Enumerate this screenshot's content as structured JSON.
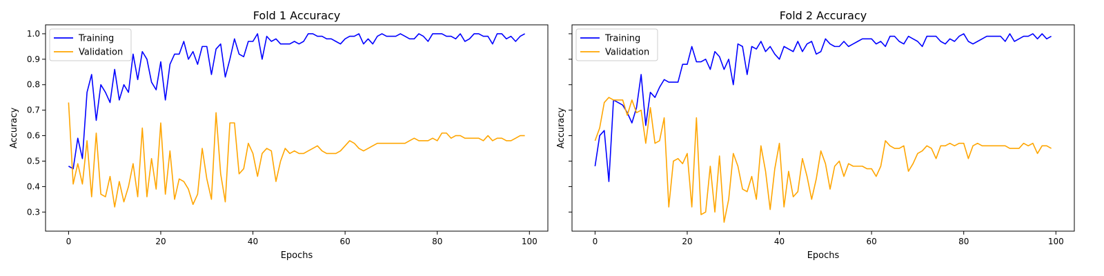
{
  "chart_data": [
    {
      "type": "line",
      "title": "Fold 1 Accuracy",
      "xlabel": "Epochs",
      "ylabel": "Accuracy",
      "xlim": [
        -5,
        104
      ],
      "ylim": [
        0.225,
        1.035
      ],
      "xticks": [
        0,
        20,
        40,
        60,
        80,
        100
      ],
      "yticks": [
        0.3,
        0.4,
        0.5,
        0.6,
        0.7,
        0.8,
        0.9,
        1.0
      ],
      "ytick_labels": [
        "0.3",
        "0.4",
        "0.5",
        "0.6",
        "0.7",
        "0.8",
        "0.9",
        "1.0"
      ],
      "grid": false,
      "legend": "top-left",
      "series": [
        {
          "name": "Training",
          "color": "#0000ff",
          "values": [
            0.48,
            0.47,
            0.59,
            0.51,
            0.77,
            0.84,
            0.66,
            0.8,
            0.77,
            0.73,
            0.86,
            0.74,
            0.8,
            0.77,
            0.92,
            0.82,
            0.93,
            0.9,
            0.81,
            0.78,
            0.89,
            0.74,
            0.88,
            0.92,
            0.92,
            0.97,
            0.9,
            0.93,
            0.88,
            0.95,
            0.95,
            0.84,
            0.94,
            0.96,
            0.83,
            0.9,
            0.98,
            0.92,
            0.91,
            0.97,
            0.97,
            1.0,
            0.9,
            0.99,
            0.97,
            0.98,
            0.96,
            0.96,
            0.96,
            0.97,
            0.96,
            0.97,
            1.0,
            1.0,
            0.99,
            0.99,
            0.98,
            0.98,
            0.97,
            0.96,
            0.98,
            0.99,
            0.99,
            1.0,
            0.96,
            0.98,
            0.96,
            0.99,
            1.0,
            0.99,
            0.99,
            0.99,
            1.0,
            0.99,
            0.98,
            0.98,
            1.0,
            0.99,
            0.97,
            1.0,
            1.0,
            1.0,
            0.99,
            0.99,
            0.98,
            1.0,
            0.97,
            0.98,
            1.0,
            1.0,
            0.99,
            0.99,
            0.96,
            1.0,
            1.0,
            0.98,
            0.99,
            0.97,
            0.99,
            1.0
          ]
        },
        {
          "name": "Validation",
          "color": "#ffa500",
          "values": [
            0.73,
            0.41,
            0.49,
            0.41,
            0.58,
            0.36,
            0.61,
            0.37,
            0.36,
            0.44,
            0.32,
            0.42,
            0.34,
            0.4,
            0.49,
            0.36,
            0.63,
            0.36,
            0.51,
            0.39,
            0.65,
            0.37,
            0.54,
            0.35,
            0.43,
            0.42,
            0.39,
            0.33,
            0.37,
            0.55,
            0.43,
            0.35,
            0.69,
            0.45,
            0.34,
            0.65,
            0.65,
            0.45,
            0.47,
            0.57,
            0.53,
            0.44,
            0.53,
            0.55,
            0.54,
            0.42,
            0.5,
            0.55,
            0.53,
            0.54,
            0.53,
            0.53,
            0.54,
            0.55,
            0.56,
            0.54,
            0.53,
            0.53,
            0.53,
            0.54,
            0.56,
            0.58,
            0.57,
            0.55,
            0.54,
            0.55,
            0.56,
            0.57,
            0.57,
            0.57,
            0.57,
            0.57,
            0.57,
            0.57,
            0.58,
            0.59,
            0.58,
            0.58,
            0.58,
            0.59,
            0.58,
            0.61,
            0.61,
            0.59,
            0.6,
            0.6,
            0.59,
            0.59,
            0.59,
            0.59,
            0.58,
            0.6,
            0.58,
            0.59,
            0.59,
            0.58,
            0.58,
            0.59,
            0.6,
            0.6
          ]
        }
      ]
    },
    {
      "type": "line",
      "title": "Fold 2 Accuracy",
      "xlabel": "Epochs",
      "ylabel": "Accuracy",
      "xlim": [
        -5,
        104
      ],
      "ylim": [
        0.225,
        1.035
      ],
      "xticks": [
        0,
        20,
        40,
        60,
        80,
        100
      ],
      "yticks": [
        0.3,
        0.4,
        0.5,
        0.6,
        0.7,
        0.8,
        0.9,
        1.0
      ],
      "ytick_labels": [],
      "grid": false,
      "legend": "top-left",
      "series": [
        {
          "name": "Training",
          "color": "#0000ff",
          "values": [
            0.48,
            0.6,
            0.62,
            0.42,
            0.74,
            0.73,
            0.72,
            0.69,
            0.65,
            0.71,
            0.84,
            0.64,
            0.77,
            0.75,
            0.79,
            0.82,
            0.81,
            0.81,
            0.81,
            0.88,
            0.88,
            0.95,
            0.89,
            0.89,
            0.9,
            0.86,
            0.93,
            0.91,
            0.86,
            0.9,
            0.8,
            0.96,
            0.95,
            0.84,
            0.95,
            0.94,
            0.97,
            0.93,
            0.95,
            0.92,
            0.9,
            0.95,
            0.94,
            0.93,
            0.97,
            0.93,
            0.96,
            0.97,
            0.92,
            0.93,
            0.98,
            0.96,
            0.95,
            0.95,
            0.97,
            0.95,
            0.96,
            0.97,
            0.98,
            0.98,
            0.98,
            0.96,
            0.97,
            0.95,
            0.99,
            0.99,
            0.97,
            0.96,
            0.99,
            0.98,
            0.97,
            0.95,
            0.99,
            0.99,
            0.99,
            0.97,
            0.96,
            0.98,
            0.97,
            0.99,
            1.0,
            0.97,
            0.96,
            0.97,
            0.98,
            0.99,
            0.99,
            0.99,
            0.99,
            0.97,
            1.0,
            0.97,
            0.98,
            0.99,
            0.99,
            1.0,
            0.98,
            1.0,
            0.98,
            0.99
          ]
        },
        {
          "name": "Validation",
          "color": "#ffa500",
          "values": [
            0.58,
            0.63,
            0.73,
            0.75,
            0.74,
            0.74,
            0.74,
            0.68,
            0.74,
            0.69,
            0.7,
            0.57,
            0.71,
            0.57,
            0.58,
            0.67,
            0.32,
            0.5,
            0.51,
            0.49,
            0.53,
            0.32,
            0.67,
            0.29,
            0.3,
            0.48,
            0.3,
            0.52,
            0.26,
            0.35,
            0.53,
            0.48,
            0.39,
            0.38,
            0.44,
            0.35,
            0.56,
            0.46,
            0.31,
            0.47,
            0.57,
            0.32,
            0.46,
            0.36,
            0.38,
            0.51,
            0.44,
            0.35,
            0.43,
            0.54,
            0.49,
            0.39,
            0.48,
            0.5,
            0.44,
            0.49,
            0.48,
            0.48,
            0.48,
            0.47,
            0.47,
            0.44,
            0.48,
            0.58,
            0.56,
            0.55,
            0.55,
            0.56,
            0.46,
            0.49,
            0.53,
            0.54,
            0.56,
            0.55,
            0.51,
            0.56,
            0.56,
            0.57,
            0.56,
            0.57,
            0.57,
            0.51,
            0.56,
            0.57,
            0.56,
            0.56,
            0.56,
            0.56,
            0.56,
            0.56,
            0.55,
            0.55,
            0.55,
            0.57,
            0.56,
            0.57,
            0.53,
            0.56,
            0.56,
            0.55
          ]
        }
      ]
    }
  ]
}
